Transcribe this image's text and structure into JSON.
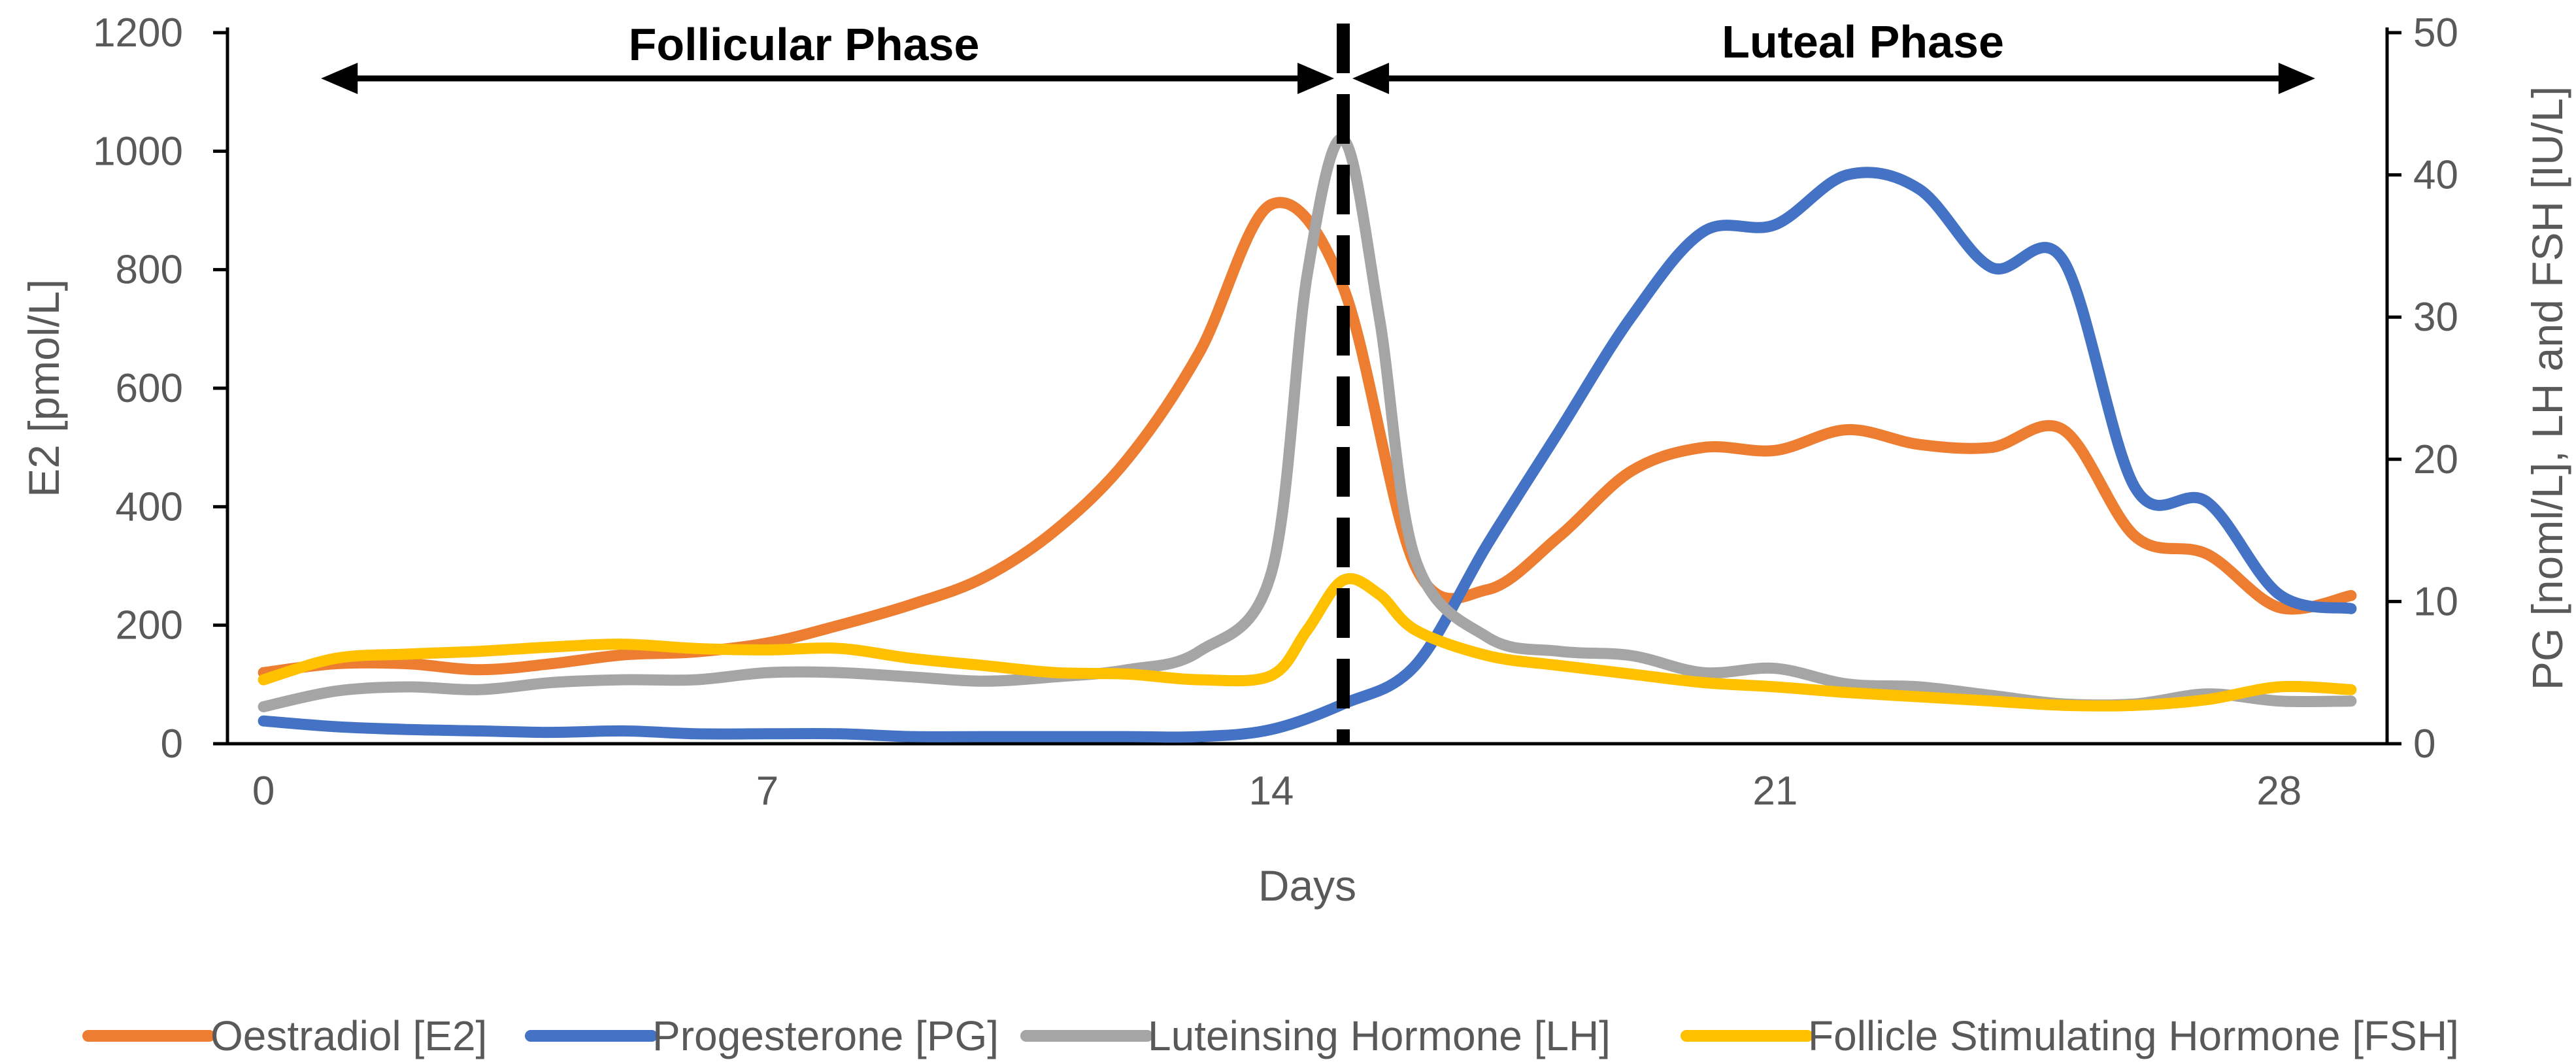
{
  "chart_data": {
    "type": "line",
    "title": "",
    "xlabel": "Days",
    "ylabel_left": "E2 [pmol/L]",
    "ylabel_right": "PG [noml/L], LH and FSH [IU/L]",
    "xlim": [
      -0.5,
      29.5
    ],
    "ylim_left": [
      0,
      1200
    ],
    "ylim_right": [
      0,
      50
    ],
    "x_ticks": [
      0,
      7,
      14,
      21,
      28
    ],
    "y_ticks_left": [
      0,
      200,
      400,
      600,
      800,
      1000,
      1200
    ],
    "y_ticks_right": [
      0,
      10,
      20,
      30,
      40,
      50
    ],
    "grid": false,
    "legend_position": "bottom",
    "ovulation_day": 15,
    "phases": [
      {
        "name": "Follicular Phase",
        "start": 0.8,
        "end": 15
      },
      {
        "name": "Luteal Phase",
        "start": 15,
        "end": 28.5
      }
    ],
    "series": [
      {
        "name": "Oestradiol [E2]",
        "axis": "left",
        "color": "#ED7D31",
        "x": [
          0,
          1,
          2,
          3,
          4,
          5,
          6,
          7,
          8,
          9,
          10,
          11,
          12,
          13,
          14,
          15,
          16,
          17,
          18,
          19,
          20,
          21,
          22,
          23,
          24,
          25,
          26,
          27,
          28,
          29
        ],
        "values": [
          120,
          135,
          135,
          125,
          135,
          150,
          155,
          170,
          200,
          235,
          280,
          360,
          480,
          660,
          910,
          770,
          300,
          260,
          350,
          460,
          500,
          495,
          530,
          505,
          500,
          530,
          350,
          320,
          230,
          250
        ]
      },
      {
        "name": "Progesterone [PG]",
        "axis": "right",
        "color": "#4472C4",
        "x": [
          0,
          1,
          2,
          3,
          4,
          5,
          6,
          7,
          8,
          9,
          10,
          11,
          12,
          13,
          14,
          15,
          16,
          17,
          18,
          19,
          20,
          21,
          22,
          23,
          24,
          25,
          26,
          27,
          28,
          29
        ],
        "values": [
          1.6,
          1.2,
          1.0,
          0.9,
          0.8,
          0.9,
          0.7,
          0.7,
          0.7,
          0.5,
          0.5,
          0.5,
          0.5,
          0.5,
          1.0,
          2.8,
          5.5,
          14.0,
          22.0,
          30.0,
          36.0,
          36.5,
          40.0,
          39.0,
          33.5,
          34.0,
          18.0,
          17.0,
          10.5,
          9.5
        ]
      },
      {
        "name": "Luteinsing Hormone [LH]",
        "axis": "right",
        "color": "#A5A5A5",
        "x": [
          0,
          1,
          2,
          3,
          4,
          5,
          6,
          7,
          8,
          9,
          10,
          11,
          12,
          13,
          14,
          14.5,
          15,
          15.5,
          16,
          17,
          18,
          19,
          20,
          21,
          22,
          23,
          24,
          25,
          26,
          27,
          28,
          29
        ],
        "values": [
          2.6,
          3.7,
          4.0,
          3.8,
          4.3,
          4.5,
          4.5,
          5.0,
          5.0,
          4.7,
          4.4,
          4.7,
          5.2,
          6.5,
          12.0,
          33.0,
          42.5,
          30.0,
          13.0,
          7.5,
          6.5,
          6.2,
          5.0,
          5.3,
          4.2,
          4.0,
          3.4,
          2.8,
          2.8,
          3.5,
          3.0,
          3.0
        ]
      },
      {
        "name": "Follicle Stimulating Hormone [FSH]",
        "axis": "right",
        "color": "#FFC000",
        "x": [
          0,
          1,
          2,
          3,
          4,
          5,
          6,
          7,
          8,
          9,
          10,
          11,
          12,
          13,
          14,
          14.5,
          15,
          15.5,
          16,
          17,
          18,
          19,
          20,
          21,
          22,
          23,
          24,
          25,
          26,
          27,
          28,
          29
        ],
        "values": [
          4.5,
          6.0,
          6.3,
          6.5,
          6.8,
          7.0,
          6.7,
          6.6,
          6.7,
          6.0,
          5.5,
          5.0,
          4.9,
          4.5,
          4.8,
          8.0,
          11.5,
          10.5,
          8.0,
          6.2,
          5.5,
          4.9,
          4.3,
          4.0,
          3.6,
          3.3,
          3.0,
          2.7,
          2.7,
          3.1,
          4.0,
          3.8
        ]
      }
    ]
  }
}
